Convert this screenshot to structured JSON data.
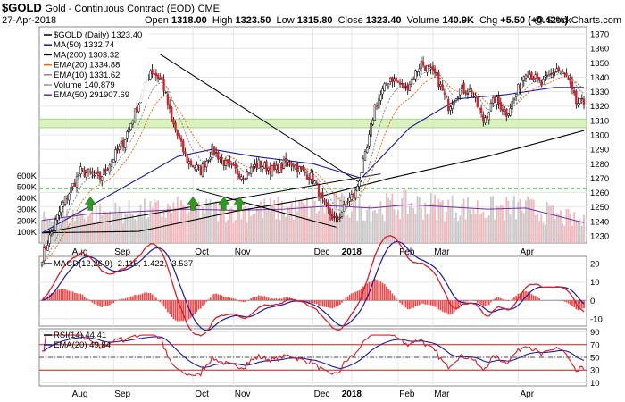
{
  "header": {
    "symbol": "$GOLD",
    "subtitle": "Gold - Continuous Contract (EOD)",
    "exchange": "CME",
    "date": "27-Apr-2018",
    "open_label": "Open",
    "open": "1318.00",
    "high_label": "High",
    "high": "1323.50",
    "low_label": "Low",
    "low": "1315.80",
    "close_label": "Close",
    "close": "1323.40",
    "volume_label": "Volume",
    "volume": "140.9K",
    "chg_label": "Chg",
    "chg": "+5.50 (+0.42%)",
    "brand": "@ StockCharts.com"
  },
  "chart_data": [
    {
      "type": "candlestick",
      "ylim": [
        1225,
        1375
      ],
      "y_ticks": [
        1230,
        1240,
        1250,
        1260,
        1270,
        1280,
        1290,
        1300,
        1310,
        1320,
        1330,
        1340,
        1350,
        1360,
        1370
      ],
      "volume_ticks": [
        {
          "value": 100000,
          "label": "100K"
        },
        {
          "value": 200000,
          "label": "200K"
        },
        {
          "value": 300000,
          "label": "300K"
        },
        {
          "value": 400000,
          "label": "400K"
        },
        {
          "value": 500000,
          "label": "500K"
        },
        {
          "value": 600000,
          "label": "600K"
        }
      ],
      "x_labels": [
        "Aug",
        "Sep",
        "Oct",
        "Nov",
        "Dec",
        "2018",
        "Feb",
        "Mar",
        "Apr"
      ],
      "legend": [
        {
          "text": "$GOLD (Daily) 1323.40",
          "color": "#000000"
        },
        {
          "text": "MA(50) 1332.74",
          "color": "#1b1b9e"
        },
        {
          "text": "MA(200) 1303.32",
          "color": "#000000"
        },
        {
          "text": "EMA(20) 1334.88",
          "color": "#e86a10"
        },
        {
          "text": "EMA(10) 1331.62",
          "color": "#888888"
        },
        {
          "text": "Volume 140,879",
          "color": "#999999"
        },
        {
          "text": "EMA(50) 291907.69",
          "color": "#7a2aa0"
        }
      ],
      "close_anchors": [
        [
          0,
          1215
        ],
        [
          10,
          1250
        ],
        [
          20,
          1275
        ],
        [
          30,
          1270
        ],
        [
          42,
          1295
        ],
        [
          50,
          1322
        ],
        [
          56,
          1345
        ],
        [
          62,
          1338
        ],
        [
          67,
          1310
        ],
        [
          75,
          1282
        ],
        [
          82,
          1275
        ],
        [
          88,
          1290
        ],
        [
          96,
          1278
        ],
        [
          104,
          1272
        ],
        [
          112,
          1280
        ],
        [
          120,
          1275
        ],
        [
          128,
          1282
        ],
        [
          134,
          1275
        ],
        [
          140,
          1270
        ],
        [
          146,
          1250
        ],
        [
          152,
          1240
        ],
        [
          158,
          1254
        ],
        [
          162,
          1260
        ],
        [
          168,
          1290
        ],
        [
          172,
          1320
        ],
        [
          180,
          1340
        ],
        [
          188,
          1332
        ],
        [
          196,
          1350
        ],
        [
          204,
          1340
        ],
        [
          210,
          1320
        ],
        [
          216,
          1332
        ],
        [
          222,
          1330
        ],
        [
          228,
          1310
        ],
        [
          234,
          1325
        ],
        [
          240,
          1315
        ],
        [
          244,
          1325
        ],
        [
          250,
          1345
        ],
        [
          258,
          1335
        ],
        [
          266,
          1346
        ],
        [
          271,
          1340
        ],
        [
          276,
          1322
        ],
        [
          280,
          1322
        ]
      ],
      "ma50_anchors": [
        [
          0,
          1232
        ],
        [
          40,
          1262
        ],
        [
          70,
          1285
        ],
        [
          88,
          1290
        ],
        [
          110,
          1285
        ],
        [
          140,
          1280
        ],
        [
          165,
          1270
        ],
        [
          190,
          1305
        ],
        [
          215,
          1325
        ],
        [
          240,
          1328
        ],
        [
          265,
          1333
        ],
        [
          280,
          1333
        ]
      ],
      "ma200_anchors": [
        [
          0,
          1232
        ],
        [
          50,
          1233
        ],
        [
          100,
          1247
        ],
        [
          140,
          1256
        ],
        [
          180,
          1270
        ],
        [
          230,
          1285
        ],
        [
          280,
          1303
        ]
      ],
      "ema20_offset": 5,
      "volume_anchors": [
        [
          0,
          200000
        ],
        [
          25,
          260000
        ],
        [
          50,
          280000
        ],
        [
          75,
          300000
        ],
        [
          100,
          290000
        ],
        [
          125,
          300000
        ],
        [
          150,
          330000
        ],
        [
          170,
          310000
        ],
        [
          190,
          340000
        ],
        [
          210,
          320000
        ],
        [
          230,
          300000
        ],
        [
          250,
          310000
        ],
        [
          280,
          180000
        ]
      ],
      "green_band": [
        1305,
        1311
      ],
      "support_line": 1263,
      "arrows_at": [
        25,
        78,
        94,
        102
      ]
    },
    {
      "type": "line",
      "name": "MACD",
      "legend_text": "MACD(12,26,9) -2.115, 1.422, -3.537",
      "ylim": [
        -14,
        24
      ],
      "y_ticks": [
        -10,
        0,
        10,
        20
      ]
    },
    {
      "type": "line",
      "name": "RSI",
      "legend": [
        {
          "text": "RSI(14) 44.41",
          "color": "#000000"
        },
        {
          "text": "EMA(20) 49.84",
          "color": "#1b1b9e"
        }
      ],
      "ylim": [
        5,
        95
      ],
      "y_ticks": [
        10,
        30,
        50,
        70,
        90
      ],
      "levels": [
        70,
        30,
        50
      ]
    }
  ]
}
